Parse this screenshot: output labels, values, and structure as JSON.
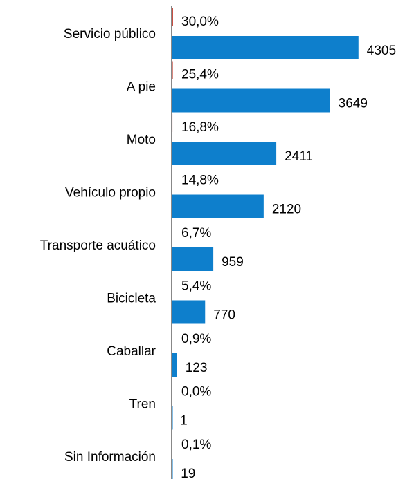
{
  "chart_data": {
    "type": "hbar",
    "categories": [
      "Servicio público",
      "A pie",
      "Moto",
      "Vehículo propio",
      "Transporte acuático",
      "Bicicleta",
      "Caballar",
      "Tren",
      "Sin Información"
    ],
    "series": [
      {
        "color": "#c0392b",
        "values": [
          30.0,
          25.4,
          16.8,
          14.8,
          6.7,
          5.4,
          0.9,
          0.0,
          0.1
        ],
        "value_labels": [
          "30,0%",
          "25,4%",
          "16,8%",
          "14,8%",
          "6,7%",
          "5,4%",
          "0,9%",
          "0,0%",
          "0,1%"
        ]
      },
      {
        "color": "#0e7fcc",
        "values": [
          4305,
          3649,
          2411,
          2120,
          959,
          770,
          123,
          1,
          19
        ]
      }
    ],
    "xlim": [
      0,
      4500
    ]
  }
}
